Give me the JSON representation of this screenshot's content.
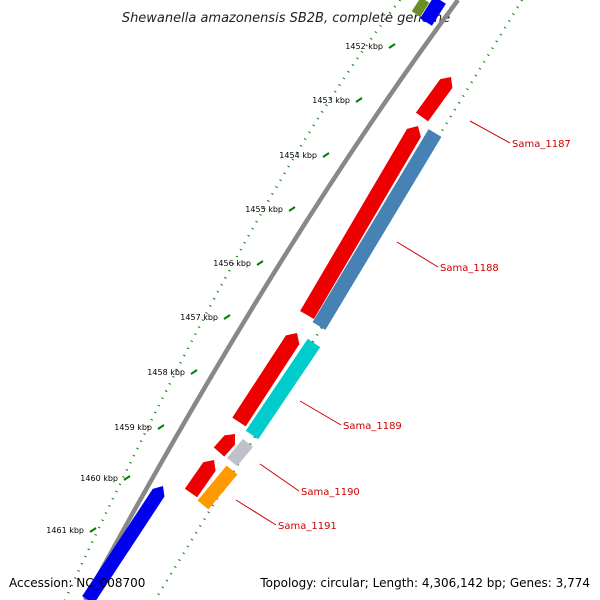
{
  "title": "Shewanella amazonensis SB2B, complete genome",
  "footer": {
    "accession": "Accession: NC_008700",
    "topology": "Topology: circular; Length: 4,306,142 bp; Genes: 3,774"
  },
  "ticks": [
    "1452 kbp",
    "1453 kbp",
    "1454 kbp",
    "1455 kbp",
    "1456 kbp",
    "1457 kbp",
    "1458 kbp",
    "1459 kbp",
    "1460 kbp",
    "1461 kbp"
  ],
  "gene_labels": [
    "Sama_1187",
    "Sama_1188",
    "Sama_1189",
    "Sama_1190",
    "Sama_1191"
  ],
  "colors": {
    "red": "#ee0000",
    "steelblue": "#4682b4",
    "cyan": "#00cccc",
    "gray": "#c0c0c8",
    "orange": "#ff9900",
    "blue": "#0000ee",
    "olive": "#6b8e23",
    "backbone": "#888888",
    "dots": "#008000",
    "label": "#cc0000"
  }
}
